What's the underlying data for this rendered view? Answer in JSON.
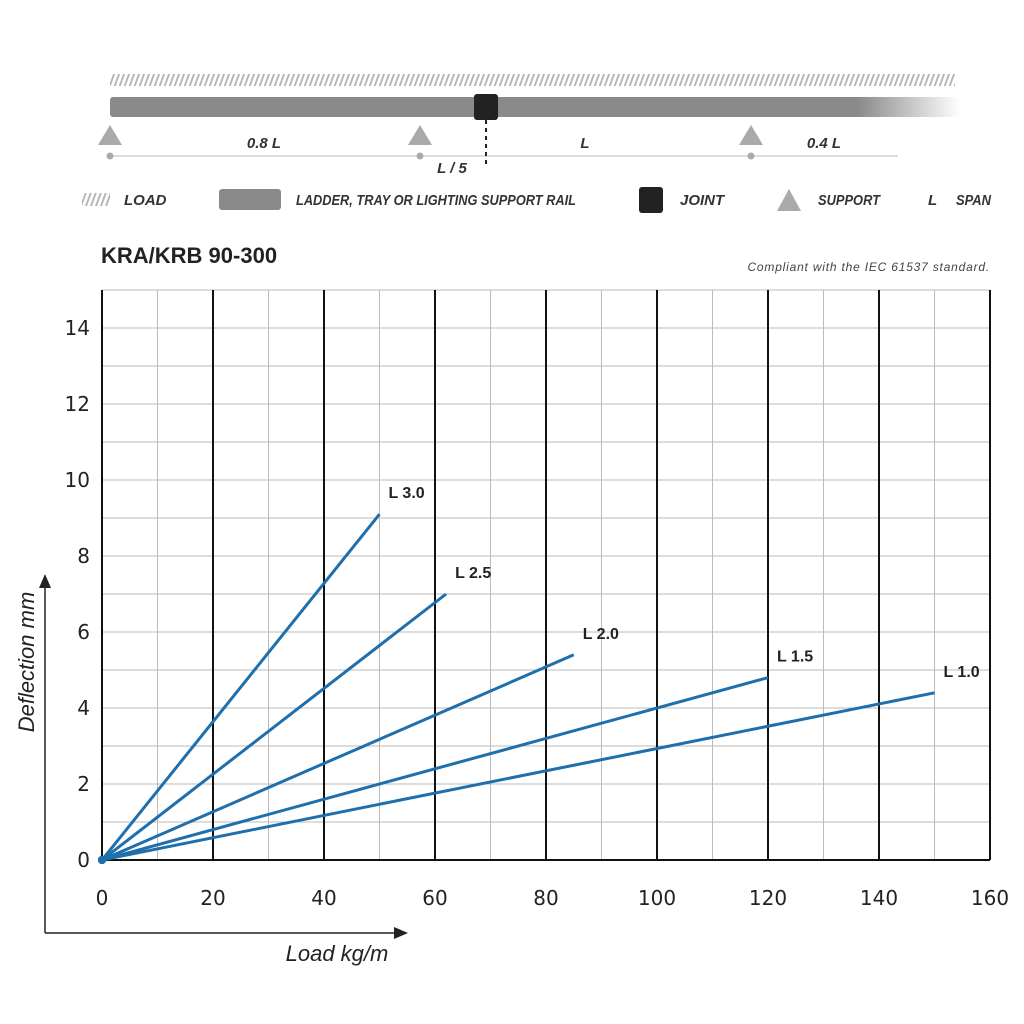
{
  "diagram": {
    "spans": [
      "0.8 L",
      "L",
      "0.4 L"
    ],
    "offset": "L / 5"
  },
  "legend": {
    "load": "LOAD",
    "rail": "LADDER, TRAY OR LIGHTING SUPPORT RAIL",
    "joint": "JOINT",
    "support": "SUPPORT",
    "span_symbol": "L",
    "span": "SPAN"
  },
  "chart_data": {
    "type": "line",
    "title": "KRA/KRB 90-300",
    "subtitle": "Compliant with the IEC 61537 standard.",
    "x_label": "Load kg/m",
    "y_label": "Deflection mm",
    "xlim": [
      0,
      160
    ],
    "xticks": [
      0,
      20,
      40,
      60,
      80,
      100,
      120,
      140,
      160
    ],
    "ylim": [
      0,
      15
    ],
    "yticks": [
      0,
      2,
      4,
      6,
      8,
      10,
      12,
      14
    ],
    "grid": true,
    "series": [
      {
        "name": "L 3.0",
        "color": "#1f6fad",
        "x": [
          0,
          50
        ],
        "values": [
          0,
          9.1
        ]
      },
      {
        "name": "L 2.5",
        "color": "#1f6fad",
        "x": [
          0,
          62
        ],
        "values": [
          0,
          7.0
        ]
      },
      {
        "name": "L 2.0",
        "color": "#1f6fad",
        "x": [
          0,
          85
        ],
        "values": [
          0,
          5.4
        ]
      },
      {
        "name": "L 1.5",
        "color": "#1f6fad",
        "x": [
          0,
          120
        ],
        "values": [
          0,
          4.8
        ]
      },
      {
        "name": "L 1.0",
        "color": "#1f6fad",
        "x": [
          0,
          150
        ],
        "values": [
          0,
          4.4
        ]
      }
    ]
  }
}
